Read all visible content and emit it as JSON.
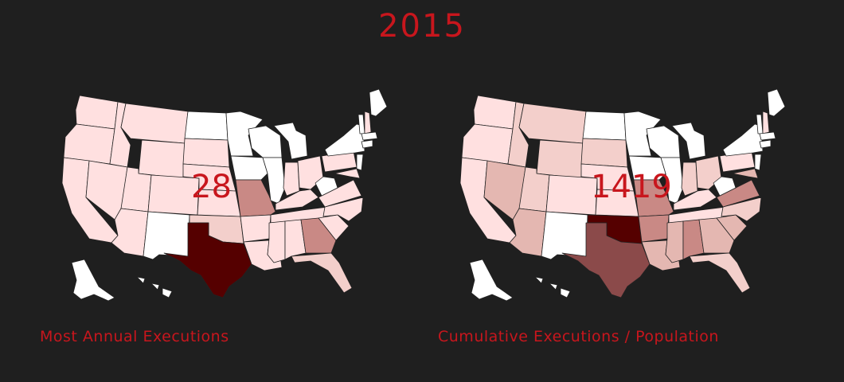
{
  "title": "2015",
  "colors": {
    "background": "#1f1f1f",
    "accent": "#c8161d",
    "none": "#ffffff",
    "low": "#ffe0e0",
    "mid": "#f3cfcb",
    "mid2": "#e4b7b1",
    "mid3": "#c98985",
    "high": "#8b4a4a",
    "max": "#550000"
  },
  "maps": [
    {
      "caption": "Most Annual Executions",
      "overlay_value": "28",
      "highlight_state": "TX"
    },
    {
      "caption": "Cumulative Executions / Population",
      "overlay_value": "1419",
      "highlight_state": "OK"
    }
  ]
}
